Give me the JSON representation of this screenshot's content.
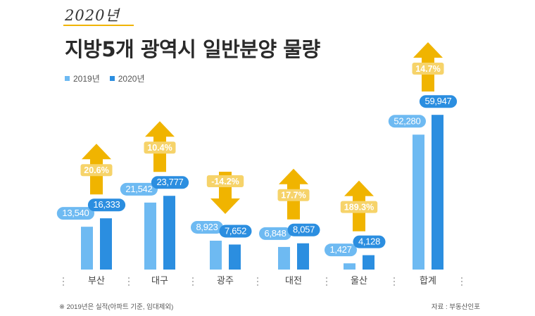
{
  "header": {
    "subtitle": "2020년",
    "title": "지방5개 광역시 일반분양 물량"
  },
  "legend": {
    "items": [
      {
        "label": "2019년",
        "color": "#6ebaf2"
      },
      {
        "label": "2020년",
        "color": "#2b8ee0"
      }
    ]
  },
  "footer": {
    "note": "※ 2019년은 실적(아파트 기준, 임대제외)",
    "source": "자료 : 부동산인포"
  },
  "colors": {
    "y2019": "#6ebaf2",
    "y2020": "#2b8ee0",
    "arrow": "#f0b400",
    "change_label": "#f6d36a"
  },
  "chart_data": {
    "type": "bar",
    "categories": [
      "부산",
      "대구",
      "광주",
      "대전",
      "울산",
      "합계"
    ],
    "series": [
      {
        "name": "2019년",
        "values": [
          13540,
          21542,
          8923,
          6848,
          1427,
          52280
        ],
        "labels": [
          "13,540",
          "21,542",
          "8,923",
          "6,848",
          "1,427",
          "52,280"
        ]
      },
      {
        "name": "2020년",
        "values": [
          16333,
          23777,
          7652,
          8057,
          4128,
          59947
        ],
        "labels": [
          "16,333",
          "23,777",
          "7,652",
          "8,057",
          "4,128",
          "59,947"
        ]
      }
    ],
    "changes": [
      {
        "label": "20.6%",
        "direction": "up"
      },
      {
        "label": "10.4%",
        "direction": "up"
      },
      {
        "label": "-14.2%",
        "direction": "down"
      },
      {
        "label": "17.7%",
        "direction": "up"
      },
      {
        "label": "189.3%",
        "direction": "up"
      },
      {
        "label": "14.7%",
        "direction": "up"
      }
    ],
    "legend_position": "top-left",
    "grid": false
  }
}
